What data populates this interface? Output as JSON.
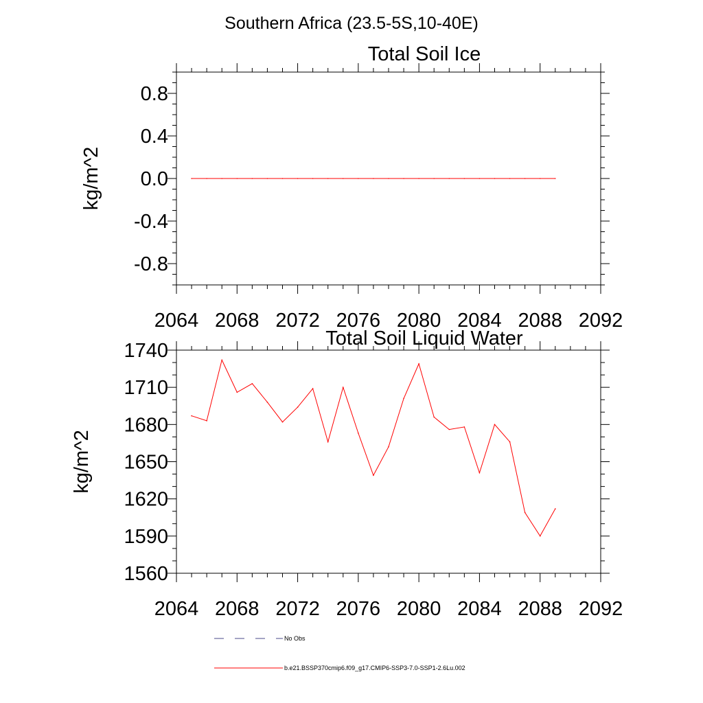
{
  "header": {
    "title": "Southern Africa (23.5-5S,10-40E)"
  },
  "chart_data": [
    {
      "type": "line",
      "title": "Total Soil Ice",
      "ylabel": "kg/m^2",
      "xlabel": "",
      "xlim": [
        2064,
        2092
      ],
      "ylim": [
        -1.0,
        1.0
      ],
      "x_ticks": [
        "2064",
        "2068",
        "2072",
        "2076",
        "2080",
        "2084",
        "2088",
        "2092"
      ],
      "y_ticks": [
        "0.8",
        "0.4",
        "0.0",
        "-0.4",
        "-0.8"
      ],
      "series": [
        {
          "color": "#ff0000",
          "x": [
            2065,
            2066,
            2067,
            2068,
            2069,
            2070,
            2071,
            2072,
            2073,
            2074,
            2075,
            2076,
            2077,
            2078,
            2079,
            2080,
            2081,
            2082,
            2083,
            2084,
            2085,
            2086,
            2087,
            2088,
            2089
          ],
          "values": [
            0,
            0,
            0,
            0,
            0,
            0,
            0,
            0,
            0,
            0,
            0,
            0,
            0,
            0,
            0,
            0,
            0,
            0,
            0,
            0,
            0,
            0,
            0,
            0,
            0
          ]
        }
      ]
    },
    {
      "type": "line",
      "title": "Total Soil Liquid Water",
      "ylabel": "kg/m^2",
      "xlabel": "",
      "xlim": [
        2064,
        2092
      ],
      "ylim": [
        1560,
        1740
      ],
      "x_ticks": [
        "2064",
        "2068",
        "2072",
        "2076",
        "2080",
        "2084",
        "2088",
        "2092"
      ],
      "y_ticks": [
        "1740",
        "1710",
        "1680",
        "1650",
        "1620",
        "1590",
        "1560"
      ],
      "series": [
        {
          "color": "#ff0000",
          "x": [
            2065,
            2066,
            2067,
            2068,
            2069,
            2070,
            2071,
            2072,
            2073,
            2074,
            2075,
            2076,
            2077,
            2078,
            2079,
            2080,
            2081,
            2082,
            2083,
            2084,
            2085,
            2086,
            2087,
            2088,
            2089
          ],
          "values": [
            1687,
            1683,
            1732,
            1706,
            1713,
            1698,
            1682,
            1694,
            1709,
            1666,
            1710,
            1673,
            1639,
            1662,
            1701,
            1729,
            1686,
            1676,
            1678,
            1641,
            1680,
            1666,
            1609,
            1590,
            1612
          ]
        }
      ]
    }
  ],
  "legend": {
    "items": [
      {
        "label": "No Obs",
        "color": "#4a4a8a",
        "style": "dashed"
      },
      {
        "label": "b.e21.BSSP370cmip6.f09_g17.CMIP6-SSP3-7.0-SSP1-2.6Lu.002",
        "color": "#ff0000",
        "style": "solid"
      }
    ]
  }
}
